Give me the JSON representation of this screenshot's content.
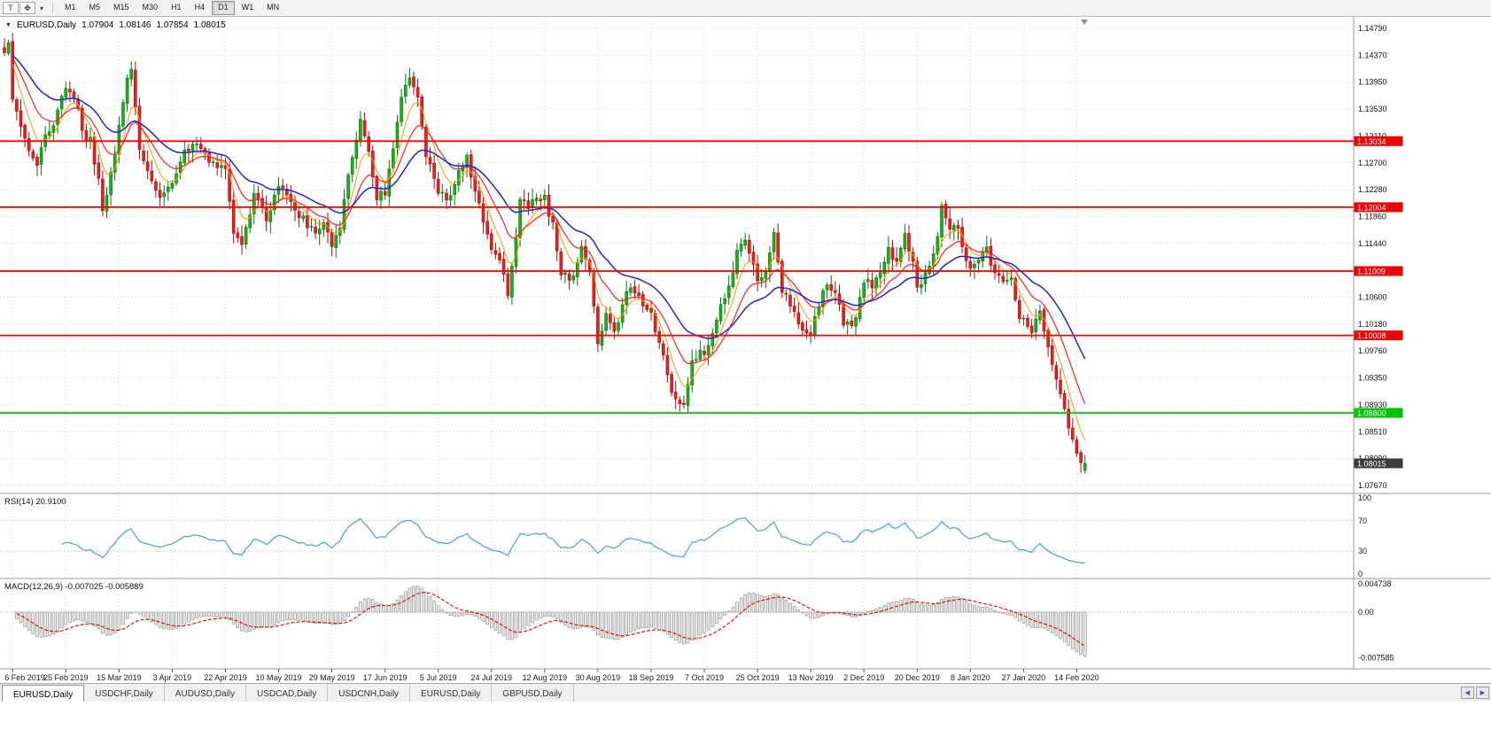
{
  "toolbar": {
    "timeframes": [
      "M1",
      "M5",
      "M15",
      "M30",
      "H1",
      "H4",
      "D1",
      "W1",
      "MN"
    ],
    "active_timeframe": "D1",
    "icons": {
      "templates": "T",
      "cursor_tool": "✥",
      "dropdown": "▾"
    }
  },
  "chart": {
    "collapse_icon": "▼",
    "symbol_period": "EURUSD,Daily",
    "open": "1.07904",
    "high": "1.08146",
    "low": "1.07854",
    "close": "1.08015"
  },
  "chart_data": {
    "type": "candlestick",
    "symbol": "EURUSD",
    "period": "Daily",
    "last_candle": {
      "open": 1.07904,
      "high": 1.08146,
      "low": 1.07854,
      "close": 1.08015
    },
    "price_ticks": [
      "1.14790",
      "1.14370",
      "1.13950",
      "1.13530",
      "1.13110",
      "1.12700",
      "1.12280",
      "1.11860",
      "1.11440",
      "1.11020",
      "1.10600",
      "1.10180",
      "1.09760",
      "1.09350",
      "1.08930",
      "1.08510",
      "1.08090",
      "1.07670"
    ],
    "date_ticks": [
      {
        "label": "6 Feb 2019",
        "i": 2
      },
      {
        "label": "25 Feb 2019",
        "i": 15
      },
      {
        "label": "15 Mar 2019",
        "i": 28
      },
      {
        "label": "3 Apr 2019",
        "i": 41
      },
      {
        "label": "22 Apr 2019",
        "i": 54
      },
      {
        "label": "10 May 2019",
        "i": 67
      },
      {
        "label": "29 May 2019",
        "i": 80
      },
      {
        "label": "17 Jun 2019",
        "i": 93
      },
      {
        "label": "5 Jul 2019",
        "i": 106
      },
      {
        "label": "24 Jul 2019",
        "i": 119
      },
      {
        "label": "12 Aug 2019",
        "i": 132
      },
      {
        "label": "30 Aug 2019",
        "i": 145
      },
      {
        "label": "18 Sep 2019",
        "i": 158
      },
      {
        "label": "7 Oct 2019",
        "i": 171
      },
      {
        "label": "25 Oct 2019",
        "i": 184
      },
      {
        "label": "13 Nov 2019",
        "i": 197
      },
      {
        "label": "2 Dec 2019",
        "i": 210
      },
      {
        "label": "20 Dec 2019",
        "i": 223
      },
      {
        "label": "8 Jan 2020",
        "i": 236
      },
      {
        "label": "27 Jan 2020",
        "i": 249
      },
      {
        "label": "14 Feb 2020",
        "i": 262
      }
    ],
    "num_candles": 265,
    "waypoints": [
      [
        0,
        1.1435
      ],
      [
        1,
        1.1452
      ],
      [
        2,
        1.1368
      ],
      [
        4,
        1.133
      ],
      [
        6,
        1.1296
      ],
      [
        8,
        1.1272
      ],
      [
        10,
        1.1306
      ],
      [
        13,
        1.1348
      ],
      [
        15,
        1.1392
      ],
      [
        17,
        1.1372
      ],
      [
        19,
        1.1322
      ],
      [
        21,
        1.1302
      ],
      [
        23,
        1.1246
      ],
      [
        24,
        1.1192
      ],
      [
        26,
        1.1252
      ],
      [
        28,
        1.1322
      ],
      [
        30,
        1.14
      ],
      [
        31,
        1.1422
      ],
      [
        33,
        1.1296
      ],
      [
        35,
        1.1256
      ],
      [
        38,
        1.1216
      ],
      [
        41,
        1.1232
      ],
      [
        44,
        1.1286
      ],
      [
        47,
        1.1306
      ],
      [
        50,
        1.1266
      ],
      [
        54,
        1.1256
      ],
      [
        56,
        1.1162
      ],
      [
        58,
        1.1136
      ],
      [
        61,
        1.1216
      ],
      [
        64,
        1.1186
      ],
      [
        67,
        1.1232
      ],
      [
        70,
        1.1206
      ],
      [
        73,
        1.1182
      ],
      [
        76,
        1.1156
      ],
      [
        78,
        1.1182
      ],
      [
        80,
        1.1136
      ],
      [
        82,
        1.1172
      ],
      [
        84,
        1.1252
      ],
      [
        86,
        1.1312
      ],
      [
        87,
        1.1336
      ],
      [
        89,
        1.1292
      ],
      [
        91,
        1.1216
      ],
      [
        93,
        1.1226
      ],
      [
        95,
        1.1296
      ],
      [
        97,
        1.1372
      ],
      [
        99,
        1.1402
      ],
      [
        101,
        1.1372
      ],
      [
        103,
        1.1286
      ],
      [
        106,
        1.1226
      ],
      [
        109,
        1.1212
      ],
      [
        111,
        1.1256
      ],
      [
        113,
        1.1276
      ],
      [
        115,
        1.1222
      ],
      [
        117,
        1.1182
      ],
      [
        119,
        1.1142
      ],
      [
        121,
        1.1116
      ],
      [
        123,
        1.1066
      ],
      [
        125,
        1.1152
      ],
      [
        126,
        1.1206
      ],
      [
        128,
        1.1202
      ],
      [
        130,
        1.1216
      ],
      [
        132,
        1.1212
      ],
      [
        134,
        1.1172
      ],
      [
        136,
        1.1102
      ],
      [
        139,
        1.1086
      ],
      [
        141,
        1.1142
      ],
      [
        143,
        1.1102
      ],
      [
        145,
        1.0992
      ],
      [
        147,
        1.1036
      ],
      [
        149,
        1.1006
      ],
      [
        152,
        1.1066
      ],
      [
        154,
        1.1072
      ],
      [
        156,
        1.1042
      ],
      [
        158,
        1.1032
      ],
      [
        160,
        1.0992
      ],
      [
        162,
        1.0936
      ],
      [
        164,
        1.0902
      ],
      [
        166,
        1.0892
      ],
      [
        168,
        1.0966
      ],
      [
        171,
        1.0972
      ],
      [
        173,
        1.1002
      ],
      [
        175,
        1.1042
      ],
      [
        177,
        1.1076
      ],
      [
        179,
        1.1126
      ],
      [
        181,
        1.1152
      ],
      [
        184,
        1.1082
      ],
      [
        186,
        1.1102
      ],
      [
        188,
        1.1156
      ],
      [
        190,
        1.1072
      ],
      [
        193,
        1.1032
      ],
      [
        195,
        1.1012
      ],
      [
        197,
        1.1006
      ],
      [
        199,
        1.1052
      ],
      [
        201,
        1.1076
      ],
      [
        203,
        1.1062
      ],
      [
        205,
        1.1022
      ],
      [
        207,
        1.1012
      ],
      [
        210,
        1.1082
      ],
      [
        212,
        1.1082
      ],
      [
        214,
        1.1096
      ],
      [
        216,
        1.1132
      ],
      [
        218,
        1.1116
      ],
      [
        220,
        1.1152
      ],
      [
        222,
        1.1122
      ],
      [
        223,
        1.1082
      ],
      [
        225,
        1.1092
      ],
      [
        227,
        1.1122
      ],
      [
        229,
        1.1202
      ],
      [
        231,
        1.1172
      ],
      [
        233,
        1.1162
      ],
      [
        236,
        1.1106
      ],
      [
        238,
        1.1122
      ],
      [
        240,
        1.1136
      ],
      [
        242,
        1.1096
      ],
      [
        244,
        1.1092
      ],
      [
        246,
        1.1086
      ],
      [
        248,
        1.1026
      ],
      [
        249,
        1.1022
      ],
      [
        251,
        1.1002
      ],
      [
        253,
        1.1036
      ],
      [
        255,
        1.0982
      ],
      [
        257,
        1.0936
      ],
      [
        259,
        1.0886
      ],
      [
        261,
        1.0842
      ],
      [
        263,
        1.0802
      ],
      [
        264,
        1.08015
      ]
    ],
    "hlines": [
      {
        "price": 1.13034,
        "label": "1.13034",
        "color": "#ee0000"
      },
      {
        "price": 1.12004,
        "label": "1.12004",
        "color": "#ee0000"
      },
      {
        "price": 1.11009,
        "label": "1.11009",
        "color": "#ee0000"
      },
      {
        "price": 1.10008,
        "label": "1.10008",
        "color": "#ee0000"
      },
      {
        "price": 1.088,
        "label": "1.08800",
        "color": "#00c400"
      }
    ],
    "current_price_tag": {
      "price": 1.08015,
      "label": "1.08015",
      "bg": "#3c3c3c"
    },
    "moving_averages": [
      {
        "period": 6,
        "color": "#ff9900",
        "width": 1
      },
      {
        "period": 13,
        "color": "#ff2020",
        "width": 1.2
      },
      {
        "period": 27,
        "color": "#2323cc",
        "width": 1.5
      }
    ],
    "colors": {
      "up_fill": "#1ab21a",
      "up_stroke": "#0b720b",
      "down_fill": "#e32222",
      "down_stroke": "#a40e0e",
      "grid": "#d6d6d6",
      "axis_text": "#111111",
      "rsi_line": "#4a9edb",
      "macd_hist_fill": "#e9e9e9",
      "macd_hist_stroke": "#999999",
      "macd_signal": "#e00000"
    },
    "rsi": {
      "label": "RSI(14)",
      "period": 14,
      "value": "20.9100",
      "axis": [
        "100",
        "70",
        "30",
        "0"
      ],
      "axis_values": [
        100,
        70,
        30,
        0
      ],
      "levels": [
        70,
        30
      ]
    },
    "macd": {
      "label": "MACD(12,26,9)",
      "fast": 12,
      "slow": 26,
      "signal": 9,
      "value_main": "-0.007025",
      "value_signal": "-0.005889",
      "axis": [
        "0.004738",
        "0.00",
        "-0.007585"
      ],
      "axis_values": [
        0.004738,
        0,
        -0.007585
      ]
    }
  },
  "tabs": {
    "items": [
      "EURUSD,Daily",
      "USDCHF,Daily",
      "AUDUSD,Daily",
      "USDCAD,Daily",
      "USDCNH,Daily",
      "EURUSD,Daily",
      "GBPUSD,Daily"
    ],
    "active_index": 0,
    "scroll_left": "◀",
    "scroll_right": "▶"
  }
}
